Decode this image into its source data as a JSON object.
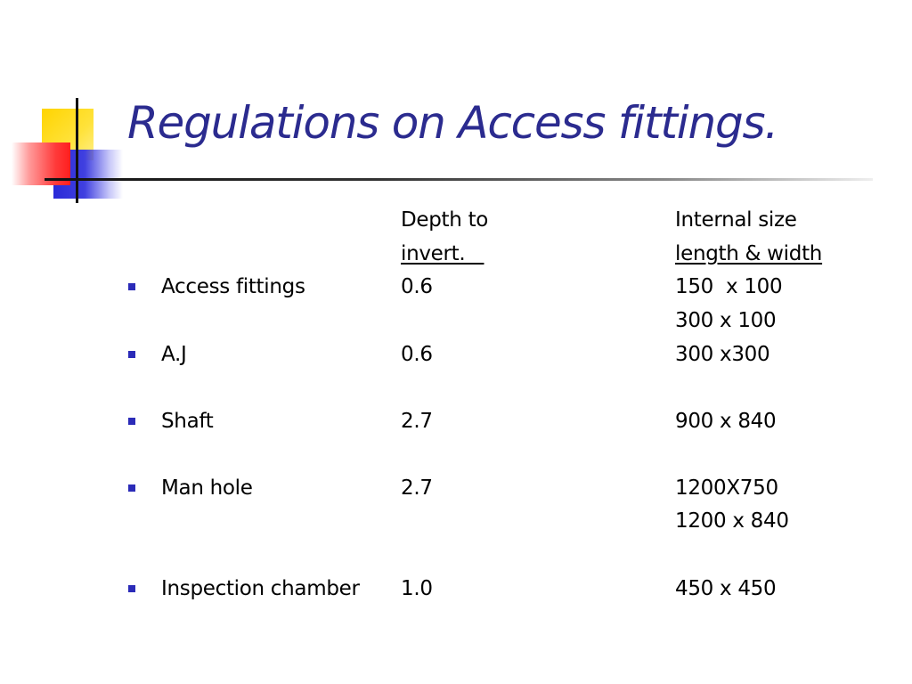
{
  "slide": {
    "title": "Regulations on Access fittings."
  },
  "table": {
    "headers": {
      "depth_line1": "Depth to",
      "depth_line2": "invert.   ",
      "size_line1": "Internal size",
      "size_line2": "length & width"
    },
    "rows": [
      {
        "name": "Access fittings",
        "depth": "0.6",
        "size_line1": "150  x 100",
        "size_line2": "300 x 100"
      },
      {
        "name": "A.J",
        "depth": "0.6",
        "size_line1": "300 x300"
      },
      {
        "name": "Shaft",
        "depth": "2.7",
        "size_line1": "900 x 840"
      },
      {
        "name": "Man hole",
        "depth": "2.7",
        "size_line1": "1200X750",
        "size_line2": "1200 x 840"
      },
      {
        "name": "Inspection chamber",
        "depth": "1.0",
        "size_line1": "450 x 450"
      }
    ]
  },
  "colors": {
    "title": "#2b2b8f",
    "bullet": "#2b2bb8",
    "accent_yellow": "#ffd400",
    "accent_red": "#ff1e1e",
    "accent_blue": "#2a2ad8"
  }
}
